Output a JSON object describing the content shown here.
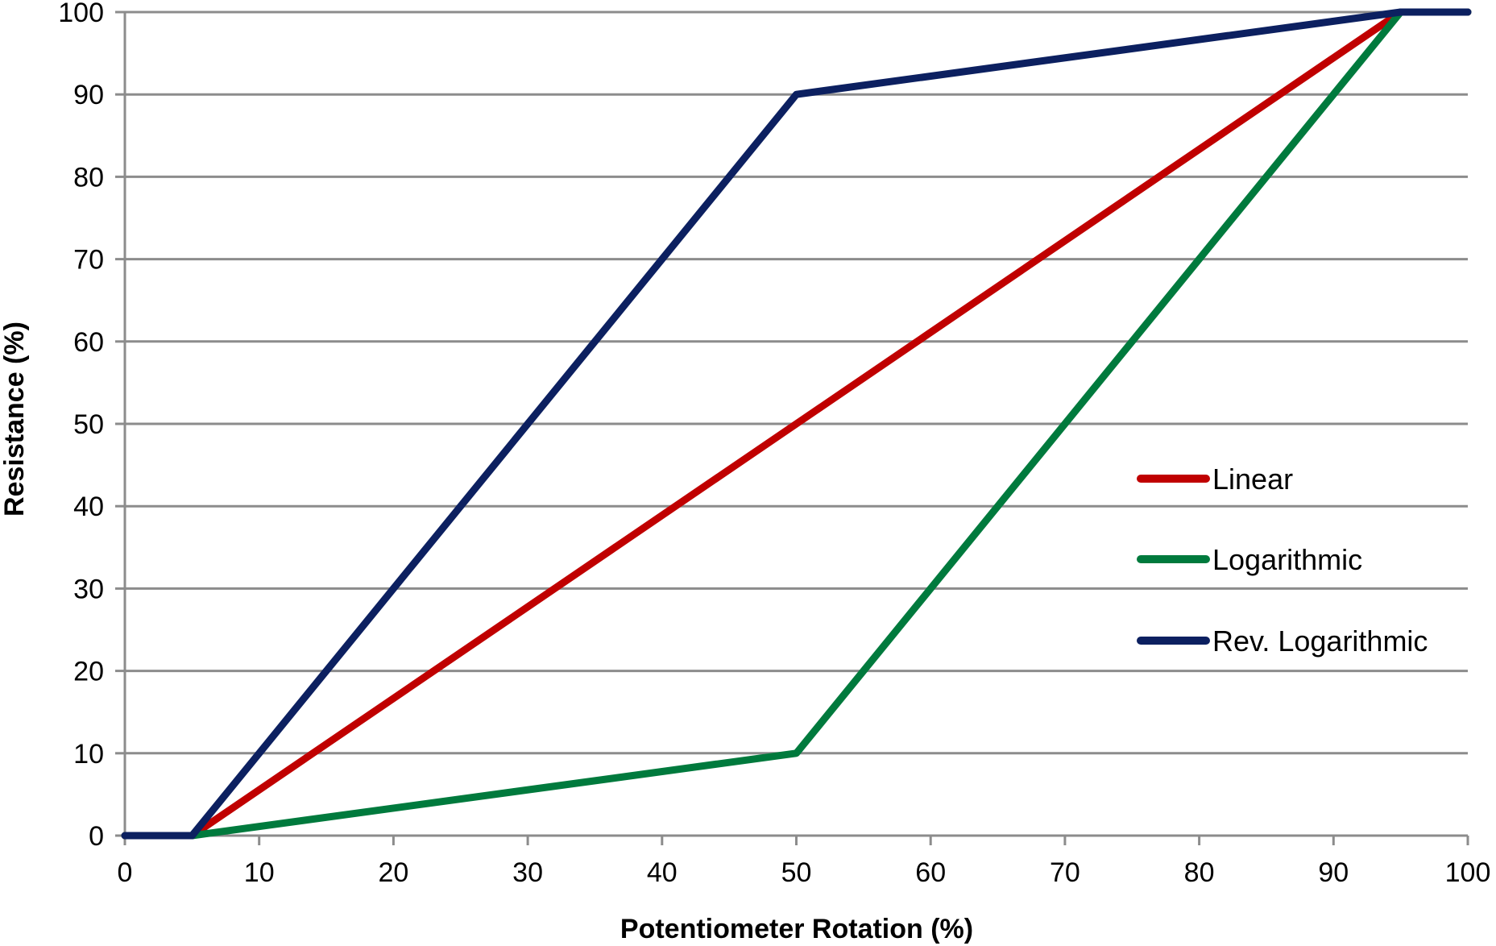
{
  "chart_data": {
    "type": "line",
    "title": "",
    "xlabel": "Potentiometer Rotation (%)",
    "ylabel": "Resistance (%)",
    "xlim": [
      0,
      100
    ],
    "ylim": [
      0,
      100
    ],
    "x_ticks": [
      "0",
      "10",
      "20",
      "30",
      "40",
      "50",
      "60",
      "70",
      "80",
      "90",
      "100"
    ],
    "y_ticks": [
      "0",
      "10",
      "20",
      "30",
      "40",
      "50",
      "60",
      "70",
      "80",
      "90",
      "100"
    ],
    "grid": "horizontal",
    "legend_position": "right",
    "series": [
      {
        "name": "Linear",
        "color": "#c00000",
        "points": [
          [
            0,
            0
          ],
          [
            5,
            0
          ],
          [
            95,
            100
          ],
          [
            100,
            100
          ]
        ]
      },
      {
        "name": "Logarithmic",
        "color": "#007a3d",
        "points": [
          [
            0,
            0
          ],
          [
            5,
            0
          ],
          [
            50,
            10
          ],
          [
            95,
            100
          ],
          [
            100,
            100
          ]
        ]
      },
      {
        "name": "Rev. Logarithmic",
        "color": "#0c2060",
        "points": [
          [
            0,
            0
          ],
          [
            5,
            0
          ],
          [
            50,
            90
          ],
          [
            95,
            100
          ],
          [
            100,
            100
          ]
        ]
      }
    ]
  }
}
